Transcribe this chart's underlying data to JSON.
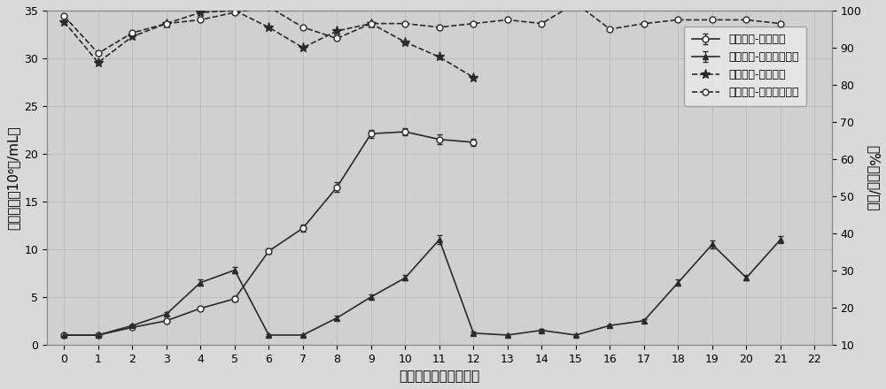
{
  "xlabel": "转染后培养时间（天）",
  "ylabel_left": "细胞密度（10⁶个/mL）",
  "ylabel_right": "（%）活性/活率",
  "xlim": [
    -0.5,
    22.5
  ],
  "ylim_left": [
    0,
    35
  ],
  "ylim_right": [
    10,
    100
  ],
  "yticks_left": [
    0,
    5,
    10,
    15,
    20,
    25,
    30,
    35
  ],
  "yticks_right": [
    10,
    20,
    30,
    40,
    50,
    60,
    70,
    80,
    90,
    100
  ],
  "xticks": [
    0,
    1,
    2,
    3,
    4,
    5,
    6,
    7,
    8,
    9,
    10,
    11,
    12,
    13,
    14,
    15,
    16,
    17,
    18,
    19,
    20,
    21,
    22
  ],
  "density_trad_x": [
    0,
    1,
    2,
    3,
    4,
    5,
    6,
    7,
    8,
    9,
    10,
    11,
    12
  ],
  "density_trad_y": [
    1.0,
    1.0,
    1.8,
    2.5,
    3.8,
    4.8,
    9.8,
    12.2,
    16.5,
    22.1,
    22.3,
    21.5,
    21.2
  ],
  "density_trad_yerr": [
    0.1,
    0.1,
    0.1,
    0.15,
    0.2,
    0.25,
    0.3,
    0.35,
    0.5,
    0.4,
    0.4,
    0.5,
    0.35
  ],
  "density_cont_x": [
    0,
    1,
    2,
    3,
    4,
    5,
    6,
    7,
    8,
    9,
    10,
    11,
    12,
    13,
    14,
    15,
    16,
    17,
    18,
    19,
    20,
    21
  ],
  "density_cont_y": [
    1.0,
    1.0,
    2.0,
    3.2,
    6.5,
    7.8,
    1.0,
    1.0,
    2.8,
    5.0,
    7.0,
    11.0,
    1.2,
    1.0,
    1.5,
    1.0,
    2.0,
    2.5,
    6.5,
    10.5,
    7.0,
    11.0
  ],
  "density_cont_yerr": [
    0.1,
    0.1,
    0.15,
    0.2,
    0.3,
    0.3,
    0.1,
    0.1,
    0.2,
    0.3,
    0.3,
    0.45,
    0.15,
    0.1,
    0.15,
    0.1,
    0.15,
    0.2,
    0.3,
    0.4,
    0.3,
    0.4
  ],
  "viability_trad_x": [
    0,
    1,
    2,
    3,
    4,
    5,
    6,
    7,
    8,
    9,
    10,
    11,
    12
  ],
  "viability_trad_y": [
    97.0,
    86.0,
    93.0,
    96.5,
    99.5,
    100.0,
    95.5,
    90.0,
    94.5,
    96.5,
    91.5,
    87.5,
    82.0
  ],
  "viability_cont_x": [
    0,
    1,
    2,
    3,
    4,
    5,
    6,
    7,
    8,
    9,
    10,
    11,
    12,
    13,
    14,
    15,
    16,
    17,
    18,
    19,
    20,
    21
  ],
  "viability_cont_y": [
    98.5,
    88.5,
    94.0,
    96.5,
    97.5,
    99.5,
    101.0,
    95.5,
    92.5,
    96.5,
    96.5,
    95.5,
    96.5,
    97.5,
    96.5,
    102.0,
    95.0,
    96.5,
    97.5,
    97.5,
    97.5,
    96.5
  ],
  "legend_labels": [
    "细胞密度-传统瞬转",
    "细胞密度-连续多次瞬转",
    "细胞活率-传统瞬转",
    "细胞活性-连续多次瞬转"
  ],
  "line_color": "#2a2a2a",
  "bg_color": "#d9d9d9",
  "plot_bg_color": "#d0d0d0",
  "grid_color": "#bbbbbb",
  "fontsize_label": 11,
  "fontsize_tick": 9,
  "fontsize_legend": 9
}
